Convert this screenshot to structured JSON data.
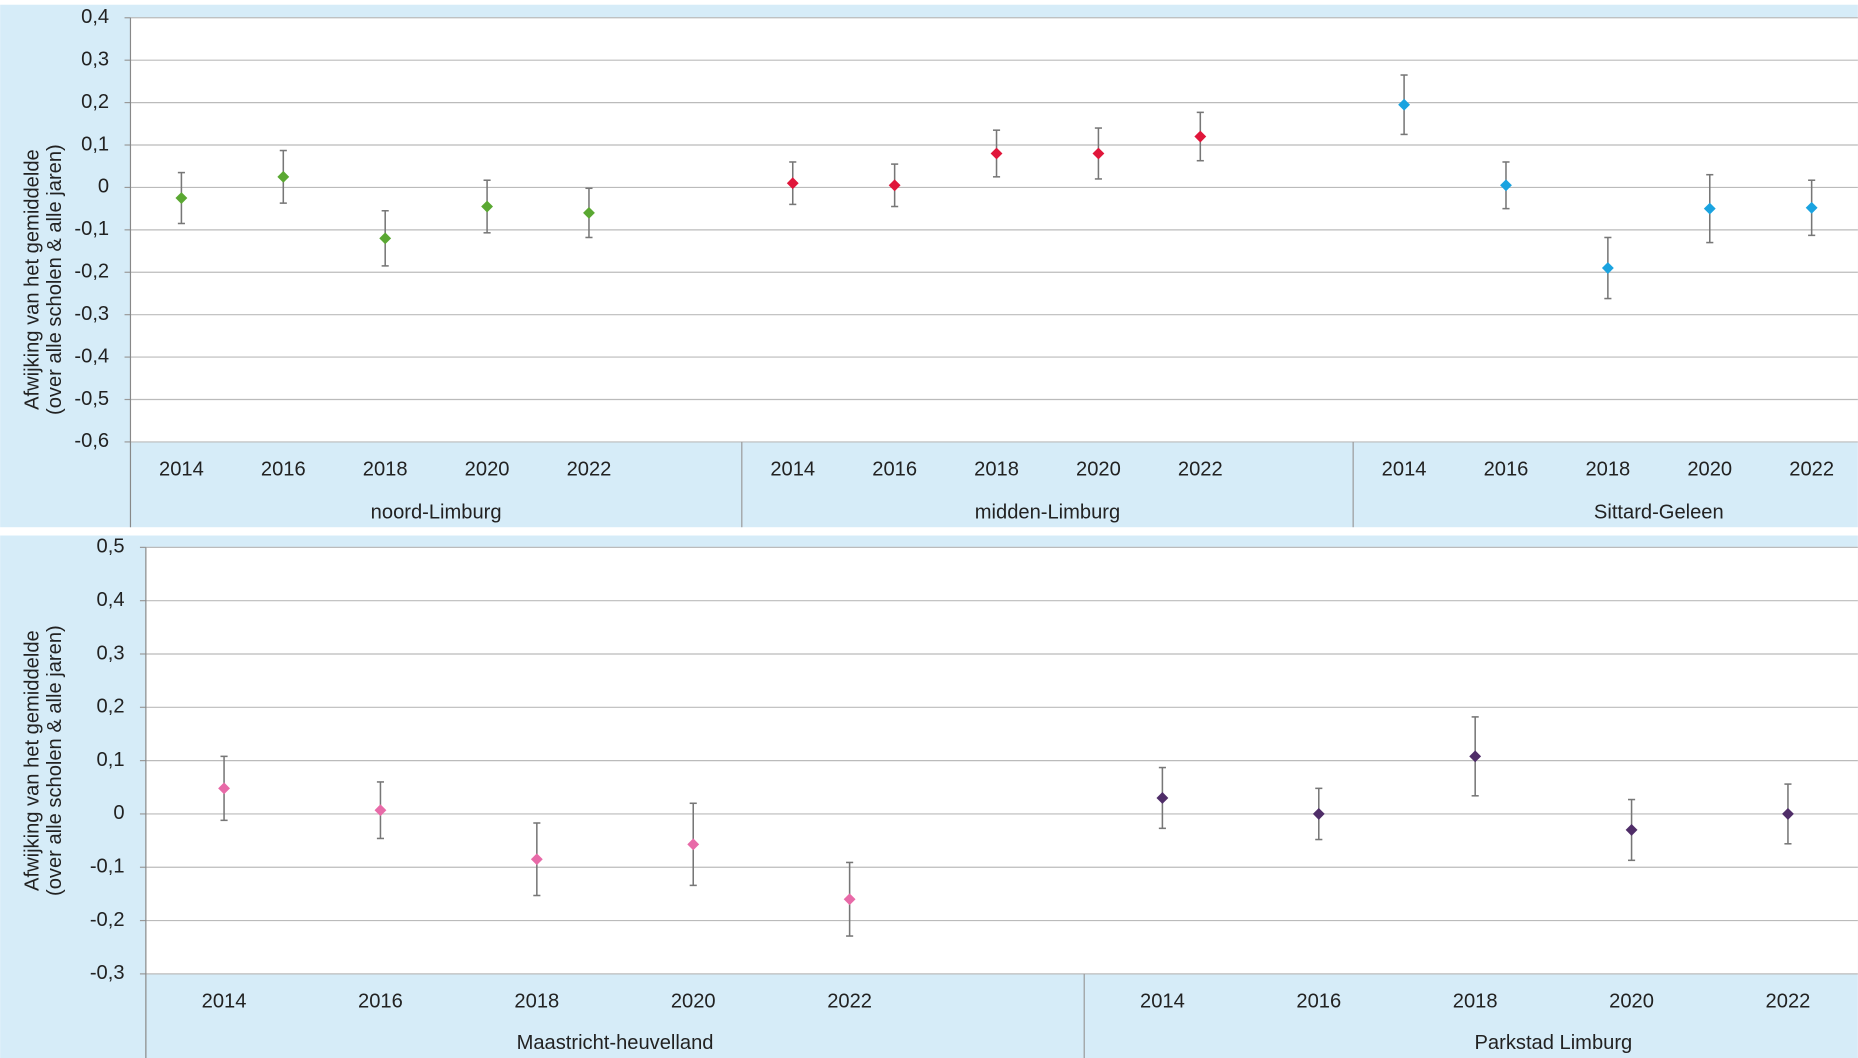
{
  "chart_data": [
    {
      "type": "scatter",
      "y_label": [
        "Afwijking van het gemiddelde",
        "(over alle scholen & alle jaren)"
      ],
      "ylim": [
        -0.6,
        0.4
      ],
      "yticks": [
        {
          "value": -0.6,
          "label": "-0,6"
        },
        {
          "value": -0.5,
          "label": "-0,5"
        },
        {
          "value": -0.4,
          "label": "-0,4"
        },
        {
          "value": -0.3,
          "label": "-0,3"
        },
        {
          "value": -0.2,
          "label": "-0,2"
        },
        {
          "value": -0.1,
          "label": "-0,1"
        },
        0,
        {
          "value": 0.1,
          "label": "0,1"
        },
        {
          "value": 0.2,
          "label": "0,2"
        },
        {
          "value": 0.3,
          "label": "0,3"
        },
        {
          "value": 0.4,
          "label": "0,4"
        }
      ],
      "grid": true,
      "groups": [
        {
          "label": "noord-Limburg",
          "color": "#5aa832",
          "categories": [
            "2014",
            "2016",
            "2018",
            "2020",
            "2022",
            null
          ],
          "values": [
            -0.025,
            0.025,
            -0.12,
            -0.045,
            -0.06,
            null
          ],
          "errors": [
            0.06,
            0.062,
            0.065,
            0.062,
            0.058,
            null
          ]
        },
        {
          "label": "midden-Limburg",
          "color": "#e0163a",
          "categories": [
            "2014",
            "2016",
            "2018",
            "2020",
            "2022",
            null
          ],
          "values": [
            0.01,
            0.005,
            0.08,
            0.08,
            0.12,
            null
          ],
          "errors": [
            0.05,
            0.05,
            0.055,
            0.06,
            0.057,
            null
          ]
        },
        {
          "label": "Sittard-Geleen",
          "color": "#1aa3e0",
          "categories": [
            "2014",
            "2016",
            "2018",
            "2020",
            "2022",
            null
          ],
          "values": [
            0.195,
            0.005,
            -0.19,
            -0.05,
            -0.048,
            null
          ],
          "errors": [
            0.07,
            0.055,
            0.072,
            0.08,
            0.065,
            null
          ]
        }
      ]
    },
    {
      "type": "scatter",
      "y_label": [
        "Afwijking van het gemiddelde",
        "(over alle scholen & alle jaren)"
      ],
      "ylim": [
        -0.3,
        0.5
      ],
      "yticks": [
        {
          "value": -0.3,
          "label": "-0,3"
        },
        {
          "value": -0.2,
          "label": "-0,2"
        },
        {
          "value": -0.1,
          "label": "-0,1"
        },
        0,
        {
          "value": 0.1,
          "label": "0,1"
        },
        {
          "value": 0.2,
          "label": "0,2"
        },
        {
          "value": 0.3,
          "label": "0,3"
        },
        {
          "value": 0.4,
          "label": "0,4"
        },
        {
          "value": 0.5,
          "label": "0,5"
        }
      ],
      "grid": true,
      "groups": [
        {
          "label": "Maastricht-heuvelland",
          "color": "#e86aa8",
          "categories": [
            "2014",
            "2016",
            "2018",
            "2020",
            "2022",
            null
          ],
          "values": [
            0.048,
            0.007,
            -0.085,
            -0.057,
            -0.16,
            null
          ],
          "errors": [
            0.06,
            0.053,
            0.068,
            0.077,
            0.069,
            null
          ]
        },
        {
          "label": "Parkstad Limburg",
          "color": "#4f2d68",
          "categories": [
            "2014",
            "2016",
            "2018",
            "2020",
            "2022",
            null
          ],
          "values": [
            0.03,
            0,
            0.108,
            -0.03,
            0,
            null
          ],
          "errors": [
            0.057,
            0.048,
            0.074,
            0.057,
            0.056,
            null
          ]
        }
      ]
    }
  ]
}
